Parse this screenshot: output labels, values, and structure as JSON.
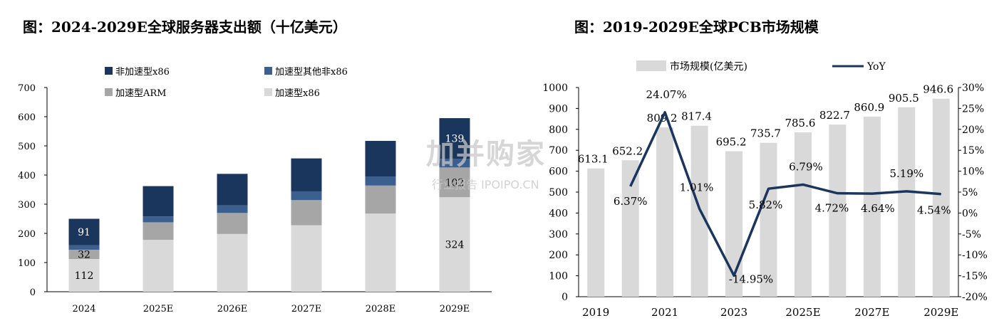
{
  "charts_header": {
    "left_title": "图：2024-2029E全球服务器支出额（十亿美元）",
    "right_title": "图：2019-2029E全球PCB市场规模"
  },
  "watermark": {
    "big": "加并购家",
    "small": "行业报告 IPOIPO.CN"
  },
  "chart_data": [
    {
      "type": "bar",
      "stacked": true,
      "title": "图：2024-2029E全球服务器支出额（十亿美元）",
      "categories": [
        "2024",
        "2025E",
        "2026E",
        "2027E",
        "2028E",
        "2029E"
      ],
      "series": [
        {
          "name": "加速型x86",
          "color": "#d9d9d9",
          "values": [
            112,
            178,
            198,
            228,
            268,
            324
          ]
        },
        {
          "name": "加速型ARM",
          "color": "#a6a6a6",
          "values": [
            32,
            60,
            72,
            86,
            96,
            102
          ]
        },
        {
          "name": "加速型其他非x86",
          "color": "#3b5f8f",
          "values": [
            15,
            20,
            26,
            30,
            31,
            30
          ]
        },
        {
          "name": "非加速型x86",
          "color": "#1b365d",
          "values": [
            91,
            104,
            108,
            113,
            122,
            139
          ]
        }
      ],
      "labels": {
        "2024": [
          "112",
          "32",
          "91"
        ],
        "2029E": [
          "324",
          "102",
          "139"
        ]
      },
      "yticks": [
        "0",
        "100",
        "200",
        "300",
        "400",
        "500",
        "600",
        "700"
      ],
      "ylim": [
        0,
        700
      ],
      "legend_placement": "top"
    },
    {
      "type": "bar+line",
      "title": "图：2019-2029E全球PCB市场规模",
      "categories": [
        "2019",
        "2020",
        "2021",
        "2022",
        "2023",
        "2024",
        "2025E",
        "2026E",
        "2027E",
        "2028E",
        "2029E"
      ],
      "xticks": [
        "2019",
        "2021",
        "2023",
        "2025E",
        "2027E",
        "2029E"
      ],
      "bar_series": {
        "name": "市场规模(亿美元)",
        "color": "#d9d9d9",
        "values": [
          613.1,
          652.2,
          809.2,
          817.4,
          695.2,
          735.7,
          785.6,
          822.7,
          860.9,
          905.5,
          946.6
        ],
        "labels": [
          "613.1",
          "652.2",
          "809.2",
          "817.4",
          "695.2",
          "735.7",
          "785.6",
          "822.7",
          "860.9",
          "905.5",
          "946.6"
        ]
      },
      "line_series": {
        "name": "YoY",
        "color": "#1b365d",
        "values": [
          6.37,
          24.07,
          1.01,
          -14.95,
          5.82,
          6.79,
          4.72,
          4.64,
          5.19,
          4.54
        ],
        "labels": [
          "6.37%",
          "24.07%",
          "1.01%",
          "-14.95%",
          "5.82%",
          "6.79%",
          "4.72%",
          "4.64%",
          "5.19%",
          "4.54%"
        ]
      },
      "yticks_left": [
        "0",
        "100",
        "200",
        "300",
        "400",
        "500",
        "600",
        "700",
        "800",
        "900",
        "1000"
      ],
      "ylim_left": [
        0,
        1000
      ],
      "yticks_right": [
        "-20%",
        "-15%",
        "-10%",
        "-5%",
        "0%",
        "5%",
        "10%",
        "15%",
        "20%",
        "25%",
        "30%"
      ],
      "ylim_right": [
        -20,
        30
      ],
      "legend_placement": "top"
    }
  ]
}
